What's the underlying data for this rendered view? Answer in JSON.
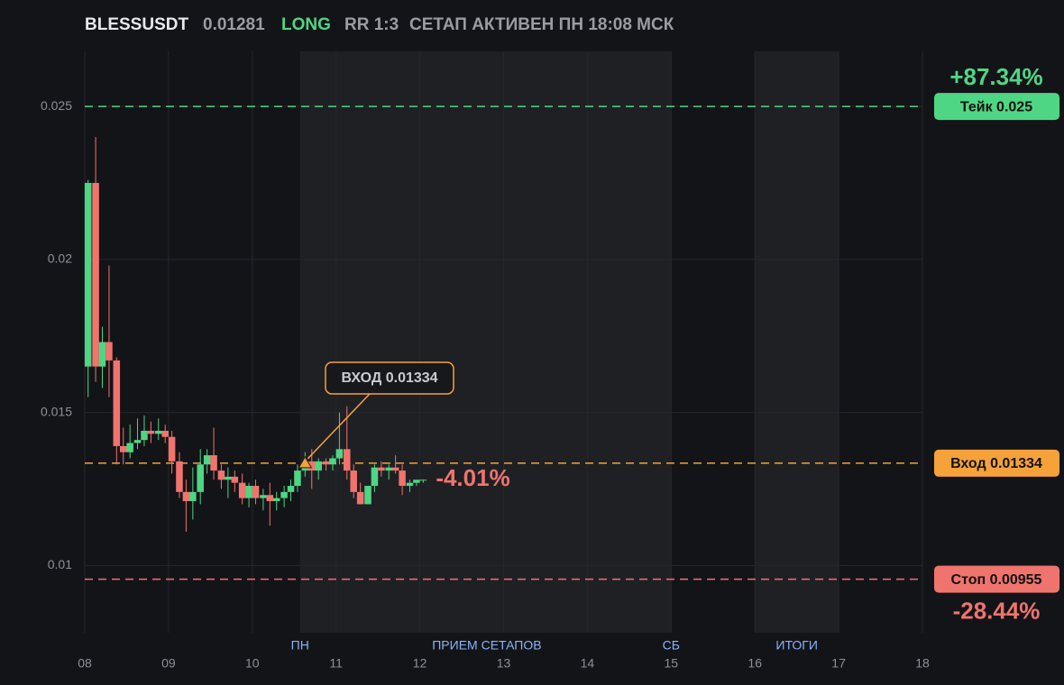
{
  "chart_data": {
    "type": "candlestick",
    "header": {
      "symbol": "BLESSUSDT",
      "price": "0.01281",
      "side": "LONG",
      "rr": "RR 1:3",
      "status": "СЕТАП АКТИВЕН ПН 18:08 МСК"
    },
    "up_color": "#4fd684",
    "down_color": "#f0746e",
    "x": [
      8.04,
      8.13,
      8.21,
      8.29,
      8.38,
      8.46,
      8.54,
      8.63,
      8.71,
      8.79,
      8.88,
      8.96,
      9.04,
      9.13,
      9.21,
      9.29,
      9.38,
      9.46,
      9.54,
      9.63,
      9.71,
      9.79,
      9.88,
      9.96,
      10.04,
      10.13,
      10.21,
      10.29,
      10.38,
      10.46,
      10.54,
      10.63,
      10.71,
      10.79,
      10.88,
      10.96,
      11.04,
      11.13,
      11.21,
      11.29,
      11.38,
      11.46,
      11.54,
      11.63,
      11.71,
      11.79,
      11.88,
      11.96,
      12.04
    ],
    "open": [
      0.0165,
      0.0225,
      0.0165,
      0.0173,
      0.0167,
      0.0139,
      0.0137,
      0.014,
      0.0141,
      0.0144,
      0.0143,
      0.0144,
      0.0142,
      0.0134,
      0.0124,
      0.0121,
      0.0124,
      0.0133,
      0.0136,
      0.0131,
      0.0128,
      0.0129,
      0.0127,
      0.0122,
      0.0126,
      0.0122,
      0.0123,
      0.0121,
      0.0122,
      0.0124,
      0.0126,
      0.0131,
      0.0134,
      0.0131,
      0.0134,
      0.0133,
      0.0135,
      0.0138,
      0.0131,
      0.0124,
      0.012,
      0.0126,
      0.0132,
      0.0131,
      0.0132,
      0.0131,
      0.0126,
      0.0127,
      0.0128
    ],
    "high": [
      0.0226,
      0.024,
      0.0178,
      0.0198,
      0.0168,
      0.0145,
      0.0146,
      0.0148,
      0.0149,
      0.0147,
      0.0148,
      0.0146,
      0.0144,
      0.0137,
      0.0128,
      0.0132,
      0.0138,
      0.0138,
      0.0145,
      0.0133,
      0.0132,
      0.0131,
      0.013,
      0.0127,
      0.0128,
      0.0125,
      0.0127,
      0.0124,
      0.0126,
      0.0128,
      0.0133,
      0.0137,
      0.0138,
      0.0135,
      0.0135,
      0.0136,
      0.015,
      0.0152,
      0.0133,
      0.0127,
      0.0126,
      0.0133,
      0.0134,
      0.0133,
      0.0136,
      0.0133,
      0.0128,
      0.0128,
      0.0128
    ],
    "low": [
      0.0155,
      0.016,
      0.0158,
      0.0155,
      0.0133,
      0.0133,
      0.0135,
      0.0138,
      0.0139,
      0.014,
      0.0141,
      0.014,
      0.013,
      0.0122,
      0.0111,
      0.0115,
      0.012,
      0.013,
      0.0128,
      0.0125,
      0.0122,
      0.0124,
      0.012,
      0.0119,
      0.012,
      0.0118,
      0.0113,
      0.0118,
      0.0119,
      0.0121,
      0.0124,
      0.0129,
      0.0125,
      0.0128,
      0.0131,
      0.0131,
      0.0133,
      0.0128,
      0.0122,
      0.012,
      0.012,
      0.0124,
      0.0129,
      0.0128,
      0.013,
      0.0123,
      0.0124,
      0.0126,
      0.0127
    ],
    "close": [
      0.0225,
      0.0165,
      0.0173,
      0.0167,
      0.0139,
      0.0137,
      0.014,
      0.0141,
      0.0144,
      0.0143,
      0.0144,
      0.0142,
      0.0134,
      0.0124,
      0.0121,
      0.0124,
      0.0133,
      0.0136,
      0.0131,
      0.0128,
      0.0129,
      0.0127,
      0.0122,
      0.0126,
      0.0122,
      0.0123,
      0.0121,
      0.0122,
      0.0124,
      0.0126,
      0.0131,
      0.0134,
      0.0131,
      0.0134,
      0.0133,
      0.0135,
      0.0138,
      0.0131,
      0.0124,
      0.012,
      0.0126,
      0.0132,
      0.0131,
      0.0132,
      0.0131,
      0.0126,
      0.0127,
      0.0128,
      0.0128
    ],
    "xlim": [
      8,
      18
    ],
    "xticks": [
      {
        "value": 8,
        "label": "08"
      },
      {
        "value": 9,
        "label": "09"
      },
      {
        "value": 10,
        "label": "10"
      },
      {
        "value": 11,
        "label": "11"
      },
      {
        "value": 12,
        "label": "12"
      },
      {
        "value": 13,
        "label": "13"
      },
      {
        "value": 14,
        "label": "14"
      },
      {
        "value": 15,
        "label": "15"
      },
      {
        "value": 16,
        "label": "16"
      },
      {
        "value": 17,
        "label": "17"
      },
      {
        "value": 18,
        "label": "18"
      }
    ],
    "ylim": [
      0.0078,
      0.0268
    ],
    "yticks": [
      0.01,
      0.015,
      0.02,
      0.025
    ],
    "grid": true,
    "zones": [
      {
        "from": 10.57,
        "to": 15
      },
      {
        "from": 16,
        "to": 17
      }
    ],
    "zone_labels": [
      {
        "x": 10.57,
        "text": "ПН"
      },
      {
        "x": 12.8,
        "text": "ПРИЕМ СЕТАПОВ"
      },
      {
        "x": 15,
        "text": "СБ"
      },
      {
        "x": 16.5,
        "text": "ИТОГИ"
      }
    ],
    "levels": [
      {
        "value": 0.025,
        "label": "Тейк 0.025",
        "change": "+87.34%",
        "color": "#4fd684"
      },
      {
        "value": 0.01334,
        "label": "Вход 0.01334",
        "color": "#f5a23a"
      },
      {
        "value": 0.00955,
        "label": "Стоп 0.00955",
        "change": "-28.44%",
        "color": "#f0746e"
      }
    ],
    "last_change": "-4.01%",
    "annotation": {
      "text": "ВХОД 0.01334",
      "x": 10.63,
      "y": 0.01334
    }
  }
}
